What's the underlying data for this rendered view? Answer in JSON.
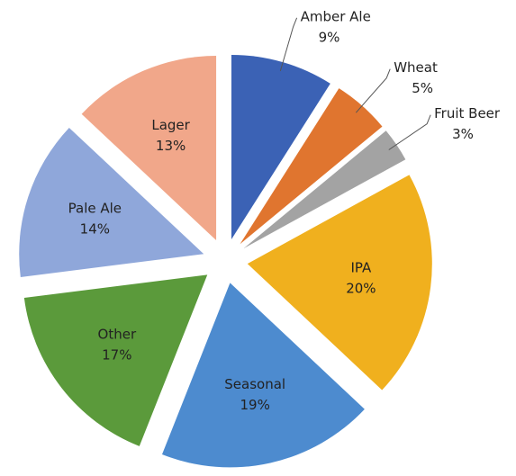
{
  "chart_data": {
    "type": "pie",
    "categories": [
      "Amber Ale",
      "Wheat",
      "Fruit Beer",
      "IPA",
      "Seasonal",
      "Other",
      "Pale Ale",
      "Lager"
    ],
    "values": [
      9,
      5,
      3,
      20,
      19,
      17,
      14,
      13
    ],
    "value_labels": [
      "9%",
      "5%",
      "3%",
      "20%",
      "19%",
      "17%",
      "14%",
      "13%"
    ],
    "colors": [
      "#3b62b5",
      "#e0752f",
      "#a3a3a3",
      "#f0b01e",
      "#4d8bcf",
      "#5b9a3b",
      "#8fa7da",
      "#f1a78a"
    ]
  }
}
